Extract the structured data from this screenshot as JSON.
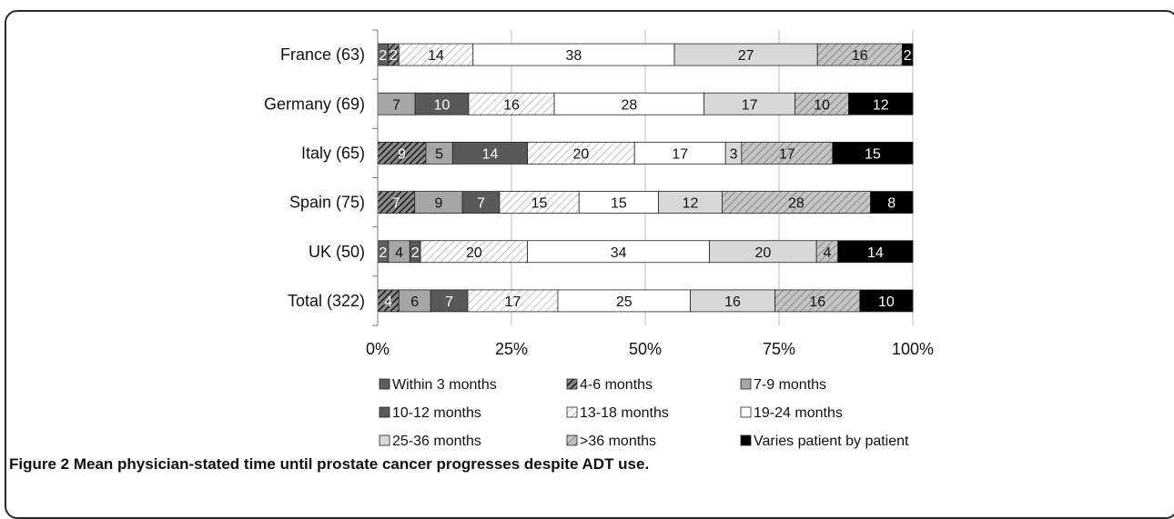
{
  "chart_data": {
    "type": "bar",
    "orientation": "horizontal",
    "stacked": true,
    "normalized": true,
    "categories": [
      "France (63)",
      "Germany (69)",
      "Italy (65)",
      "Spain (75)",
      "UK (50)",
      "Total (322)"
    ],
    "series": [
      {
        "name": "Within 3 months",
        "color": "#5f5f5f",
        "pattern": "solid",
        "values": [
          2,
          0,
          0,
          0,
          2,
          0
        ]
      },
      {
        "name": "4-6 months",
        "color": "#3a3a3a",
        "pattern": "dense-hatch",
        "values": [
          2,
          0,
          9,
          7,
          0,
          4
        ]
      },
      {
        "name": "7-9 months",
        "color": "#a6a6a6",
        "pattern": "solid",
        "values": [
          0,
          7,
          5,
          9,
          4,
          6
        ]
      },
      {
        "name": "10-12 months",
        "color": "#595959",
        "pattern": "solid",
        "values": [
          0,
          10,
          14,
          7,
          2,
          7
        ]
      },
      {
        "name": "13-18 months",
        "color": "#ffffff",
        "pattern": "light-hatch",
        "values": [
          14,
          16,
          20,
          15,
          20,
          17
        ]
      },
      {
        "name": "19-24 months",
        "color": "#ffffff",
        "pattern": "solid",
        "values": [
          38,
          28,
          17,
          15,
          34,
          25
        ]
      },
      {
        "name": "25-36 months",
        "color": "#d8d8d8",
        "pattern": "solid",
        "values": [
          27,
          17,
          3,
          12,
          20,
          16
        ]
      },
      {
        "name": ">36 months",
        "color": "#b5b5b5",
        "pattern": "medium-hatch",
        "values": [
          16,
          10,
          17,
          28,
          4,
          16
        ]
      },
      {
        "name": "Varies patient by patient",
        "color": "#000000",
        "pattern": "solid",
        "values": [
          2,
          12,
          15,
          8,
          14,
          10
        ]
      }
    ],
    "x_ticks": [
      "0%",
      "25%",
      "50%",
      "75%",
      "100%"
    ],
    "xlim": [
      0,
      100
    ],
    "grid": true,
    "legend_position": "bottom",
    "xlabel": "",
    "ylabel": ""
  },
  "caption": {
    "label": "Figure 2",
    "text": "Mean physician-stated time until prostate cancer progresses despite ADT use."
  }
}
